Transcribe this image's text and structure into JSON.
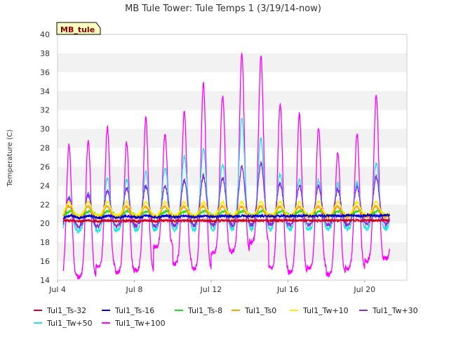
{
  "chart_data": {
    "type": "line",
    "title": "MB Tule Tower: Tule Temps 1 (3/19/14-now)",
    "ylabel": "Temperature (C)",
    "xlabel": "",
    "x_unit": "day of July (2014)",
    "xlim": [
      4,
      22.2
    ],
    "ylim": [
      14,
      40
    ],
    "xticks": [
      {
        "value": 4,
        "label": "Jul 4"
      },
      {
        "value": 8,
        "label": "Jul 8"
      },
      {
        "value": 12,
        "label": "Jul 12"
      },
      {
        "value": 16,
        "label": "Jul 16"
      },
      {
        "value": 20,
        "label": "Jul 20"
      }
    ],
    "yticks": [
      14,
      16,
      18,
      20,
      22,
      24,
      26,
      28,
      30,
      32,
      34,
      36,
      38,
      40
    ],
    "grid": "horizontal bands",
    "badge": "MB_tule",
    "legend_position": "bottom",
    "day_range": [
      4.3,
      21.3
    ],
    "series": [
      {
        "name": "Tul1_Ts-32",
        "color": "#d0021b",
        "profile": {
          "base": 20.2,
          "amp_start": 0.1,
          "amp_end": 0.1,
          "peak": 0.62,
          "width": 0.25,
          "drift": 0.15
        }
      },
      {
        "name": "Tul1_Ts-16",
        "color": "#0000cc",
        "profile": {
          "base": 20.5,
          "amp_start": 0.3,
          "amp_end": 0.3,
          "peak": 0.66,
          "width": 0.25,
          "drift": 0.4
        }
      },
      {
        "name": "Tul1_Ts-8",
        "color": "#22dd22",
        "profile": {
          "base": 20.7,
          "amp_start": 0.6,
          "amp_end": 0.6,
          "peak": 0.68,
          "width": 0.22,
          "drift": 0.1
        }
      },
      {
        "name": "Tul1_Ts0",
        "color": "#f5a500",
        "profile": {
          "base": 20.6,
          "amp_start": 1.2,
          "amp_end": 1.2,
          "peak": 0.58,
          "width": 0.16,
          "drift": 0.1
        }
      },
      {
        "name": "Tul1_Tw+10",
        "color": "#ffee00",
        "profile": {
          "base": 20.8,
          "amp_start": 1.5,
          "amp_end": 1.5,
          "peak": 0.6,
          "width": 0.16,
          "drift": 0.1
        }
      },
      {
        "name": "Tul1_Tw+30",
        "color": "#8a2be2",
        "profile": {
          "base": 19.6,
          "amp_start": 3.0,
          "amp_end": 3.0,
          "peak": 0.6,
          "width": 0.16,
          "drift": 0.3
        }
      },
      {
        "name": "Tul1_Tw+50",
        "color": "#22e5e5",
        "profile": {
          "base": 19.2,
          "amp_start": 3.5,
          "amp_end": 3.5,
          "peak": 0.6,
          "width": 0.15,
          "drift": 0.2
        }
      },
      {
        "name": "Tul1_Tw+100",
        "color": "#ff00ff",
        "profile": {
          "base": 15.0,
          "amp_start": 12.5,
          "amp_end": 12.5,
          "peak": 0.6,
          "width": 0.13,
          "drift": 0.5
        }
      }
    ],
    "daily_peaks": {
      "Tul1_Tw+100": [
        {
          "x": 4.62,
          "y": 28.3
        },
        {
          "x": 5.6,
          "y": 28.8
        },
        {
          "x": 6.6,
          "y": 30.1
        },
        {
          "x": 7.6,
          "y": 28.6
        },
        {
          "x": 8.6,
          "y": 31.2
        },
        {
          "x": 9.6,
          "y": 29.3
        },
        {
          "x": 10.6,
          "y": 31.7
        },
        {
          "x": 11.6,
          "y": 34.8
        },
        {
          "x": 12.6,
          "y": 33.5
        },
        {
          "x": 13.6,
          "y": 38.1
        },
        {
          "x": 14.6,
          "y": 37.7
        },
        {
          "x": 15.6,
          "y": 32.6
        },
        {
          "x": 16.6,
          "y": 31.6
        },
        {
          "x": 17.6,
          "y": 30.1
        },
        {
          "x": 18.6,
          "y": 27.5
        },
        {
          "x": 19.6,
          "y": 29.4
        },
        {
          "x": 20.65,
          "y": 33.8
        }
      ],
      "Tul1_Tw+50": [
        {
          "x": 4.62,
          "y": 22.8
        },
        {
          "x": 5.6,
          "y": 23.2
        },
        {
          "x": 6.6,
          "y": 24.8
        },
        {
          "x": 7.6,
          "y": 24.6
        },
        {
          "x": 8.6,
          "y": 25.4
        },
        {
          "x": 9.6,
          "y": 25.9
        },
        {
          "x": 10.6,
          "y": 27.0
        },
        {
          "x": 11.6,
          "y": 27.8
        },
        {
          "x": 12.6,
          "y": 26.2
        },
        {
          "x": 13.6,
          "y": 31.2
        },
        {
          "x": 14.6,
          "y": 29.0
        },
        {
          "x": 15.6,
          "y": 25.2
        },
        {
          "x": 16.6,
          "y": 24.6
        },
        {
          "x": 17.6,
          "y": 24.6
        },
        {
          "x": 18.6,
          "y": 24.3
        },
        {
          "x": 19.6,
          "y": 24.3
        },
        {
          "x": 20.65,
          "y": 26.4
        }
      ],
      "Tul1_Tw+30": [
        {
          "x": 4.62,
          "y": 22.6
        },
        {
          "x": 5.6,
          "y": 23.0
        },
        {
          "x": 6.6,
          "y": 23.5
        },
        {
          "x": 7.6,
          "y": 23.8
        },
        {
          "x": 8.6,
          "y": 24.0
        },
        {
          "x": 9.6,
          "y": 24.0
        },
        {
          "x": 10.6,
          "y": 24.5
        },
        {
          "x": 11.6,
          "y": 25.0
        },
        {
          "x": 12.6,
          "y": 24.8
        },
        {
          "x": 13.6,
          "y": 26.0
        },
        {
          "x": 14.6,
          "y": 26.5
        },
        {
          "x": 15.6,
          "y": 24.2
        },
        {
          "x": 16.6,
          "y": 24.0
        },
        {
          "x": 17.6,
          "y": 24.0
        },
        {
          "x": 18.6,
          "y": 23.6
        },
        {
          "x": 19.6,
          "y": 23.8
        },
        {
          "x": 20.65,
          "y": 25.0
        }
      ]
    },
    "daily_minima": {
      "Tul1_Tw+100": [
        14.2,
        14.3,
        15.4,
        14.8,
        15.0,
        17.5,
        15.7,
        15.2,
        16.8,
        17.0,
        18.0,
        15.2,
        14.8,
        15.3,
        14.6,
        15.2,
        16.0,
        16.3
      ]
    }
  }
}
